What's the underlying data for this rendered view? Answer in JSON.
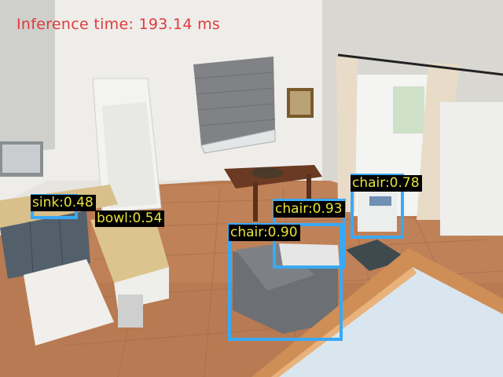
{
  "header": {
    "inference_text": "Inference time: 193.14 ms"
  },
  "colors": {
    "box": "#3aa9f5",
    "label_bg": "#000000",
    "label_text": "#e8e23a",
    "inference_text": "#e03a3a"
  },
  "detections": [
    {
      "label": "sink:0.48"
    },
    {
      "label": "bowl:0.54"
    },
    {
      "label": "chair:0.78"
    },
    {
      "label": "chair:0.93"
    },
    {
      "label": "chair:0.90"
    }
  ]
}
